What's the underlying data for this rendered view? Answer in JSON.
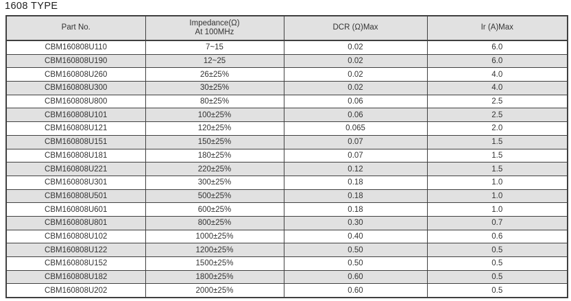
{
  "page": {
    "title": "1608 TYPE"
  },
  "colors": {
    "header_bg": "#e1e1e1",
    "stripe_bg": "#e1e1e1",
    "border": "#3f3f3f",
    "text": "#333333"
  },
  "table": {
    "columns": [
      {
        "key": "part_no",
        "label": "Part No."
      },
      {
        "key": "impedance",
        "label": "Impedance(Ω)\nAt 100MHz"
      },
      {
        "key": "dcr",
        "label": "DCR (Ω)Max"
      },
      {
        "key": "ir",
        "label": "Ir (A)Max"
      }
    ],
    "rows": [
      [
        "CBM160808U110",
        "7~15",
        "0.02",
        "6.0"
      ],
      [
        "CBM160808U190",
        "12~25",
        "0.02",
        "6.0"
      ],
      [
        "CBM160808U260",
        "26±25%",
        "0.02",
        "4.0"
      ],
      [
        "CBM160808U300",
        "30±25%",
        "0.02",
        "4.0"
      ],
      [
        "CBM160808U800",
        "80±25%",
        "0.06",
        "2.5"
      ],
      [
        "CBM160808U101",
        "100±25%",
        "0.06",
        "2.5"
      ],
      [
        "CBM160808U121",
        "120±25%",
        "0.065",
        "2.0"
      ],
      [
        "CBM160808U151",
        "150±25%",
        "0.07",
        "1.5"
      ],
      [
        "CBM160808U181",
        "180±25%",
        "0.07",
        "1.5"
      ],
      [
        "CBM160808U221",
        "220±25%",
        "0.12",
        "1.5"
      ],
      [
        "CBM160808U301",
        "300±25%",
        "0.18",
        "1.0"
      ],
      [
        "CBM160808U501",
        "500±25%",
        "0.18",
        "1.0"
      ],
      [
        "CBM160808U601",
        "600±25%",
        "0.18",
        "1.0"
      ],
      [
        "CBM160808U801",
        "800±25%",
        "0.30",
        "0.7"
      ],
      [
        "CBM160808U102",
        "1000±25%",
        "0.40",
        "0.6"
      ],
      [
        "CBM160808U122",
        "1200±25%",
        "0.50",
        "0.5"
      ],
      [
        "CBM160808U152",
        "1500±25%",
        "0.50",
        "0.5"
      ],
      [
        "CBM160808U182",
        "1800±25%",
        "0.60",
        "0.5"
      ],
      [
        "CBM160808U202",
        "2000±25%",
        "0.60",
        "0.5"
      ]
    ]
  }
}
